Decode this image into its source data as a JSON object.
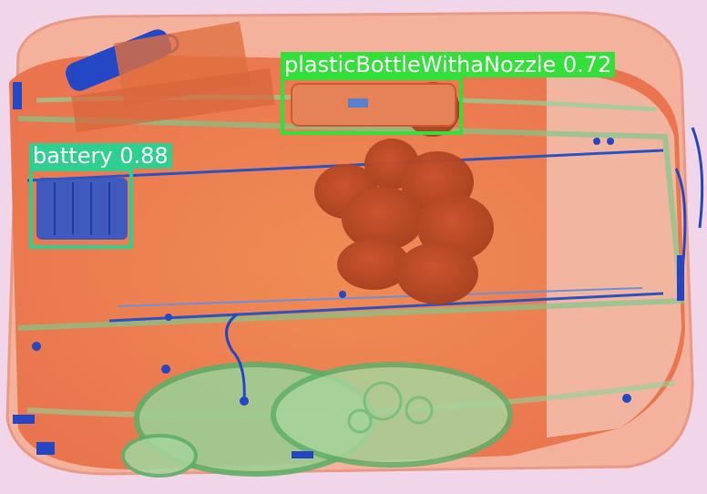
{
  "image": {
    "subject": "x-ray-baggage-scan",
    "background_color": "#f1d6ea"
  },
  "detections": [
    {
      "label": "plasticBottleWithaNozzle",
      "score": "0.72",
      "text": "plasticBottleWithaNozzle 0.72",
      "color": "#33e03a"
    },
    {
      "label": "battery",
      "score": "0.88",
      "text": "battery 0.88",
      "color": "#2fd08f"
    }
  ]
}
